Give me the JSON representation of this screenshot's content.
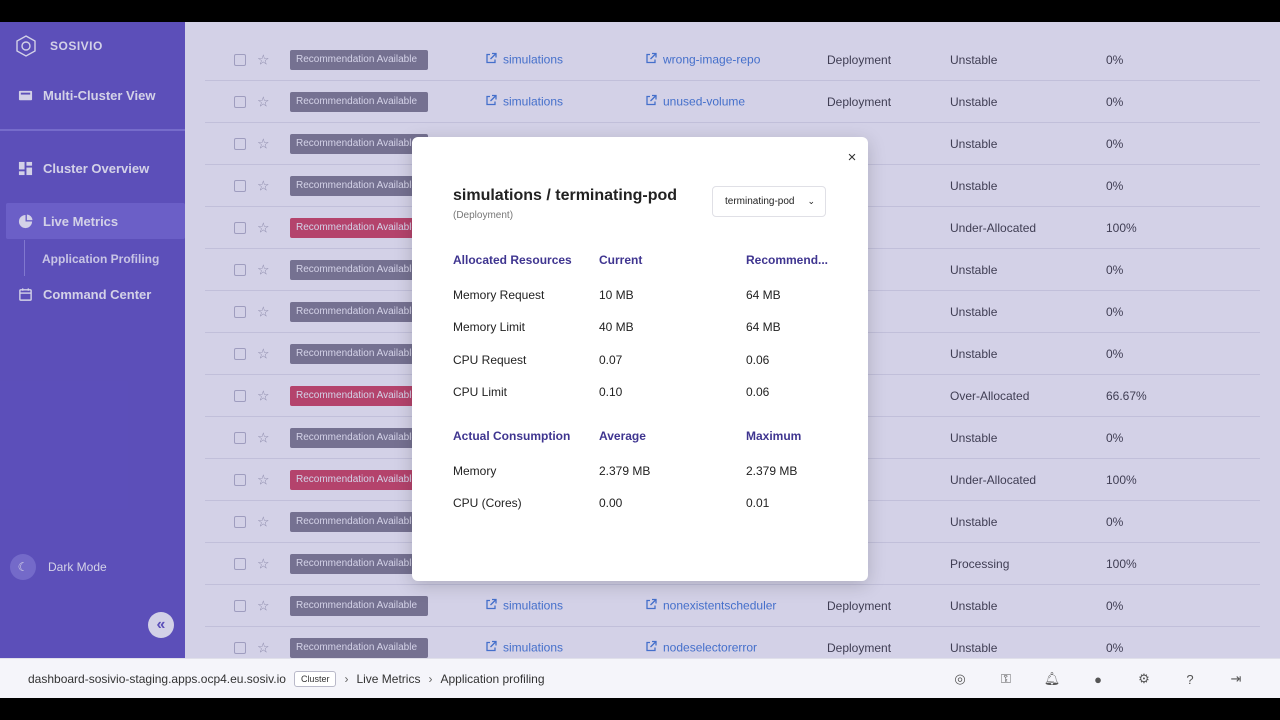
{
  "sidebar": {
    "brand": "SOSIVIO",
    "multi_cluster": "Multi-Cluster View",
    "cluster_overview": "Cluster Overview",
    "live_metrics": "Live Metrics",
    "application_profiling": "Application Profiling",
    "command_center": "Command Center",
    "dark_mode": "Dark Mode",
    "collapse": "«"
  },
  "table": {
    "rows": [
      {
        "badge": "Recommendation Available",
        "tone": "gray",
        "namespace": "simulations",
        "workload": "wrong-image-repo",
        "kind": "Deployment",
        "status": "Unstable",
        "pct": "0%"
      },
      {
        "badge": "Recommendation Available",
        "tone": "gray",
        "namespace": "simulations",
        "workload": "unused-volume",
        "kind": "Deployment",
        "status": "Unstable",
        "pct": "0%"
      },
      {
        "badge": "Recommendation Available",
        "tone": "gray",
        "namespace": "",
        "workload": "",
        "kind": "ment",
        "status": "Unstable",
        "pct": "0%"
      },
      {
        "badge": "Recommendation Available",
        "tone": "gray",
        "namespace": "",
        "workload": "",
        "kind": "ment",
        "status": "Unstable",
        "pct": "0%"
      },
      {
        "badge": "Recommendation Available",
        "tone": "red",
        "namespace": "",
        "workload": "",
        "kind": "ment",
        "status": "Under-Allocated",
        "pct": "100%"
      },
      {
        "badge": "Recommendation Available",
        "tone": "gray",
        "namespace": "",
        "workload": "",
        "kind": "ment",
        "status": "Unstable",
        "pct": "0%"
      },
      {
        "badge": "Recommendation Available",
        "tone": "gray",
        "namespace": "",
        "workload": "",
        "kind": "ment",
        "status": "Unstable",
        "pct": "0%"
      },
      {
        "badge": "Recommendation Available",
        "tone": "gray",
        "namespace": "",
        "workload": "",
        "kind": "ment",
        "status": "Unstable",
        "pct": "0%"
      },
      {
        "badge": "Recommendation Available",
        "tone": "red",
        "namespace": "",
        "workload": "",
        "kind": "ment",
        "status": "Over-Allocated",
        "pct": "66.67%"
      },
      {
        "badge": "Recommendation Available",
        "tone": "gray",
        "namespace": "",
        "workload": "",
        "kind": "ment",
        "status": "Unstable",
        "pct": "0%"
      },
      {
        "badge": "Recommendation Available",
        "tone": "red",
        "namespace": "",
        "workload": "",
        "kind": "ment",
        "status": "Under-Allocated",
        "pct": "100%"
      },
      {
        "badge": "Recommendation Available",
        "tone": "gray",
        "namespace": "",
        "workload": "",
        "kind": "ment",
        "status": "Unstable",
        "pct": "0%"
      },
      {
        "badge": "Recommendation Available",
        "tone": "gray",
        "namespace": "",
        "workload": "",
        "kind": "ment",
        "status": "Processing",
        "pct": "100%"
      },
      {
        "badge": "Recommendation Available",
        "tone": "gray",
        "namespace": "simulations",
        "workload": "nonexistentscheduler",
        "kind": "Deployment",
        "status": "Unstable",
        "pct": "0%"
      },
      {
        "badge": "Recommendation Available",
        "tone": "gray",
        "namespace": "simulations",
        "workload": "nodeselectorerror",
        "kind": "Deployment",
        "status": "Unstable",
        "pct": "0%"
      }
    ]
  },
  "modal": {
    "title": "simulations / terminating-pod",
    "subtitle": "(Deployment)",
    "select_value": "terminating-pod",
    "allocated": {
      "header": [
        "Allocated Resources",
        "Current",
        "Recommend..."
      ],
      "rows": [
        [
          "Memory Request",
          "10 MB",
          "64 MB"
        ],
        [
          "Memory Limit",
          "40 MB",
          "64 MB"
        ],
        [
          "CPU Request",
          "0.07",
          "0.06"
        ],
        [
          "CPU Limit",
          "0.10",
          "0.06"
        ]
      ]
    },
    "consumption": {
      "header": [
        "Actual Consumption",
        "Average",
        "Maximum"
      ],
      "rows": [
        [
          "Memory",
          "2.379 MB",
          "2.379 MB"
        ],
        [
          "CPU (Cores)",
          "0.00",
          "0.01"
        ]
      ]
    },
    "close": "×"
  },
  "bottombar": {
    "host": "dashboard-sosivio-staging.apps.ocp4.eu.sosiv.io",
    "chip": "Cluster",
    "crumb1": "Live Metrics",
    "crumb2": "Application profiling",
    "sep": "›"
  },
  "colors": {
    "accent": "#5a4cc0",
    "link": "#3a78d8",
    "danger": "#d43b55",
    "neutral_badge": "#7d7b88"
  }
}
